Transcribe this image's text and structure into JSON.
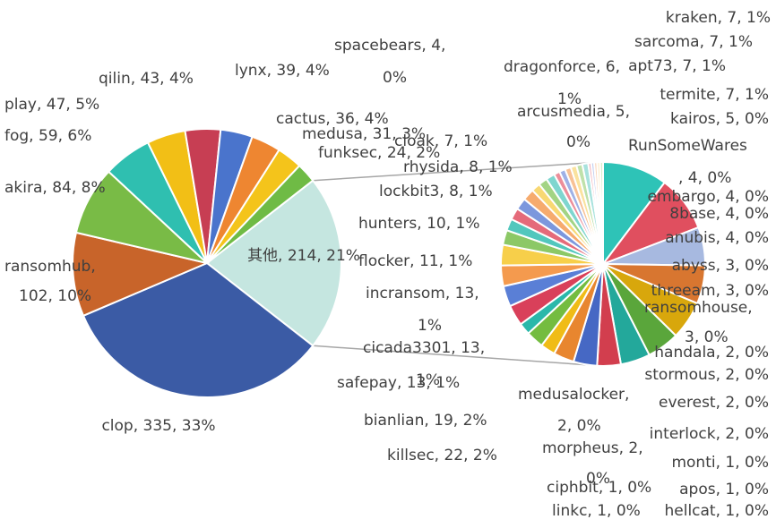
{
  "chart_data": {
    "type": "pie",
    "subtype": "pie-of-pie",
    "main": {
      "slices": [
        {
          "label": "其他, 214, 21%",
          "name": "其他",
          "value": 214,
          "color": "#c5e6e0"
        },
        {
          "label": "clop, 335, 33%",
          "name": "clop",
          "value": 335,
          "color": "#3b5ba5"
        },
        {
          "label": "ransomhub, 102, 10%",
          "name": "ransomhub",
          "value": 102,
          "color": "#c8642a"
        },
        {
          "label": "akira, 84, 8%",
          "name": "akira",
          "value": 84,
          "color": "#79bb46"
        },
        {
          "label": "fog, 59, 6%",
          "name": "fog",
          "value": 59,
          "color": "#2fbfb0"
        },
        {
          "label": "play, 47, 5%",
          "name": "play",
          "value": 47,
          "color": "#f2bf16"
        },
        {
          "label": "qilin, 43, 4%",
          "name": "qilin",
          "value": 43,
          "color": "#c73e53"
        },
        {
          "label": "lynx, 39, 4%",
          "name": "lynx",
          "value": 39,
          "color": "#4a74cc"
        },
        {
          "label": "cactus, 36, 4%",
          "name": "cactus",
          "value": 36,
          "color": "#ee8631"
        },
        {
          "label": "medusa, 31, 3%",
          "name": "medusa",
          "value": 31,
          "color": "#f4c41b"
        },
        {
          "label": "funksec, 24, 2%",
          "name": "funksec",
          "value": 24,
          "color": "#6fbb45"
        }
      ]
    },
    "secondary": {
      "slices": [
        {
          "label": "killsec, 22, 2%",
          "name": "killsec",
          "value": 22,
          "color": "#2ec3b7"
        },
        {
          "label": "bianlian, 19, 2%",
          "name": "bianlian",
          "value": 19,
          "color": "#e04f5f"
        },
        {
          "label": "safepay, 13, 1%",
          "name": "safepay",
          "value": 13,
          "color": "#a7b9e0"
        },
        {
          "label": "cicada3301, 13, 1%",
          "name": "cicada3301",
          "value": 13,
          "color": "#d87630"
        },
        {
          "label": "incransom, 13, 1%",
          "name": "incransom",
          "value": 13,
          "color": "#d8a70c"
        },
        {
          "label": "flocker, 11, 1%",
          "name": "flocker",
          "value": 11,
          "color": "#5aa63b"
        },
        {
          "label": "hunters, 10, 1%",
          "name": "hunters",
          "value": 10,
          "color": "#23a89b"
        },
        {
          "label": "lockbit3, 8, 1%",
          "name": "lockbit3",
          "value": 8,
          "color": "#d23e4e"
        },
        {
          "label": "rhysida, 8, 1%",
          "name": "rhysida",
          "value": 8,
          "color": "#4668c4"
        },
        {
          "label": "cloak, 7, 1%",
          "name": "cloak",
          "value": 7,
          "color": "#e8862f"
        },
        {
          "label": "arcusmedia, 5, 0%",
          "name": "arcusmedia",
          "value": 5,
          "color": "#f0bc16"
        },
        {
          "label": "dragonforce, 6, 1%",
          "name": "dragonforce",
          "value": 6,
          "color": "#74bc40"
        },
        {
          "label": "spacebears, 4, 0%",
          "name": "spacebears",
          "value": 4,
          "color": "#2ab8aa"
        },
        {
          "label": "kraken, 7, 1%",
          "name": "kraken",
          "value": 7,
          "color": "#d9405a"
        },
        {
          "label": "sarcoma, 7, 1%",
          "name": "sarcoma",
          "value": 7,
          "color": "#5a7fd6"
        },
        {
          "label": "apt73, 7, 1%",
          "name": "apt73",
          "value": 7,
          "color": "#f49a4e"
        },
        {
          "label": "termite, 7, 1%",
          "name": "termite",
          "value": 7,
          "color": "#f7cf4a"
        },
        {
          "label": "kairos, 5, 0%",
          "name": "kairos",
          "value": 5,
          "color": "#8cc866"
        },
        {
          "label": "RunSomeWares, 4, 0%",
          "name": "RunSomeWares",
          "value": 4,
          "color": "#52c7bd"
        },
        {
          "label": "embargo, 4, 0%",
          "name": "embargo",
          "value": 4,
          "color": "#e56a7a"
        },
        {
          "label": "8base, 4, 0%",
          "name": "8base",
          "value": 4,
          "color": "#7c97dd"
        },
        {
          "label": "anubis, 4, 0%",
          "name": "anubis",
          "value": 4,
          "color": "#f6ab6e"
        },
        {
          "label": "abyss, 3, 0%",
          "name": "abyss",
          "value": 3,
          "color": "#f8d873"
        },
        {
          "label": "threeam, 3, 0%",
          "name": "threeam",
          "value": 3,
          "color": "#a3d484"
        },
        {
          "label": "ransomhouse, 3, 0%",
          "name": "ransomhouse",
          "value": 3,
          "color": "#7fd6cf"
        },
        {
          "label": "handala, 2, 0%",
          "name": "handala",
          "value": 2,
          "color": "#ec8e9a"
        },
        {
          "label": "stormous, 2, 0%",
          "name": "stormous",
          "value": 2,
          "color": "#9fb1e6"
        },
        {
          "label": "everest, 2, 0%",
          "name": "everest",
          "value": 2,
          "color": "#f8c195"
        },
        {
          "label": "interlock, 2, 0%",
          "name": "interlock",
          "value": 2,
          "color": "#fae29e"
        },
        {
          "label": "medusalocker, 2, 0%",
          "name": "medusalocker",
          "value": 2,
          "color": "#bfe1aa"
        },
        {
          "label": "morpheus, 2, 0%",
          "name": "morpheus",
          "value": 2,
          "color": "#a8e2dd"
        },
        {
          "label": "monti, 1, 0%",
          "name": "monti",
          "value": 1,
          "color": "#f2b4bc"
        },
        {
          "label": "apos, 1, 0%",
          "name": "apos",
          "value": 1,
          "color": "#c3cff0"
        },
        {
          "label": "hellcat, 1, 0%",
          "name": "hellcat",
          "value": 1,
          "color": "#fbd7bd"
        },
        {
          "label": "ciphbit, 1, 0%",
          "name": "ciphbit",
          "value": 1,
          "color": "#fcecc4"
        },
        {
          "label": "linkc, 1, 0%",
          "name": "linkc",
          "value": 1,
          "color": "#d9eecb"
        }
      ]
    }
  }
}
